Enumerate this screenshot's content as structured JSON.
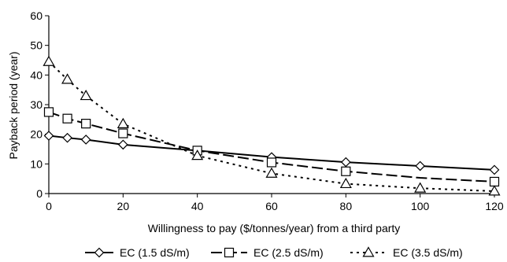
{
  "chart_data": {
    "type": "line",
    "title": "",
    "xlabel": "Willingness to pay ($/tonnes/year) from a third party",
    "ylabel": "Payback period (year)",
    "xlim": [
      0,
      120
    ],
    "ylim": [
      0,
      60
    ],
    "xticks": [
      0,
      20,
      40,
      60,
      80,
      100,
      120
    ],
    "yticks": [
      0,
      10,
      20,
      30,
      40,
      50,
      60
    ],
    "grid": false,
    "legend_position": "bottom",
    "series": [
      {
        "name": "EC (1.5 dS/m)",
        "marker": "diamond",
        "dash": "solid",
        "color": "#000000",
        "x": [
          0,
          5,
          10,
          20,
          40,
          60,
          80,
          100,
          120
        ],
        "y": [
          19.5,
          18.8,
          18.2,
          16.5,
          14.5,
          12.3,
          10.6,
          9.3,
          8.0
        ],
        "markers_at": [
          0,
          5,
          10,
          20,
          60,
          80,
          100,
          120
        ]
      },
      {
        "name": "EC (2.5 dS/m)",
        "marker": "square",
        "dash": "long-dash",
        "color": "#000000",
        "x": [
          0,
          5,
          10,
          20,
          40,
          60,
          80,
          100,
          120
        ],
        "y": [
          27.5,
          25.3,
          23.6,
          20.3,
          14.5,
          10.5,
          7.5,
          5.3,
          4.0
        ],
        "markers_at": [
          0,
          5,
          10,
          20,
          40,
          60,
          80,
          120
        ]
      },
      {
        "name": "EC (3.5 dS/m)",
        "marker": "triangle",
        "dash": "dotted",
        "color": "#000000",
        "x": [
          0,
          5,
          10,
          20,
          40,
          60,
          80,
          100,
          120
        ],
        "y": [
          44.5,
          38.5,
          33.0,
          23.5,
          12.8,
          6.8,
          3.3,
          1.8,
          0.8
        ],
        "markers_at": [
          0,
          5,
          10,
          20,
          40,
          60,
          80,
          100,
          120
        ]
      }
    ]
  }
}
